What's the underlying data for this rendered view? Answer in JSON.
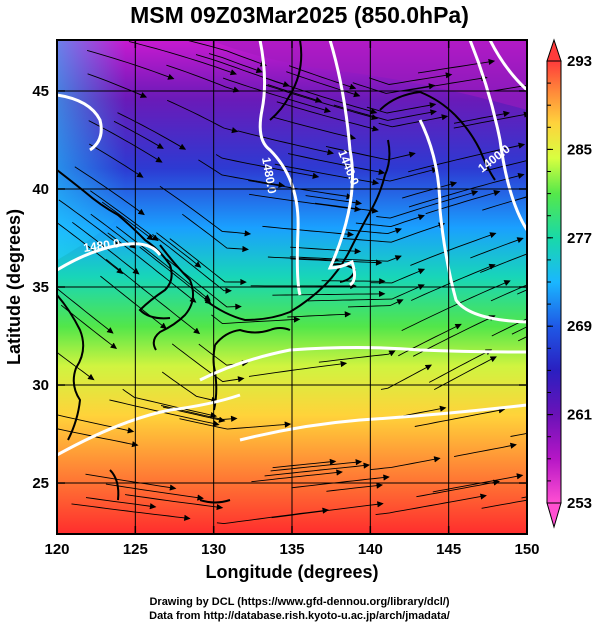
{
  "title": "MSM 09Z03Mar2025 (850.0hPa)",
  "chart_data": {
    "type": "heatmap",
    "title": "MSM 09Z03Mar2025 (850.0hPa)",
    "xlabel": "Longitude (degrees)",
    "ylabel": "Latitude  (degrees)",
    "xlim": [
      120,
      150
    ],
    "ylim": [
      22.4,
      47.6
    ],
    "x_ticks": [
      "120",
      "125",
      "130",
      "135",
      "140",
      "145",
      "150"
    ],
    "y_ticks": [
      "25",
      "30",
      "35",
      "40",
      "45"
    ],
    "grid": true,
    "colorbar": {
      "range": [
        253,
        293
      ],
      "labels": [
        "293",
        "285",
        "277",
        "269",
        "261",
        "253"
      ],
      "colors": [
        "#ff3b3b",
        "#ff8a3a",
        "#ffd23c",
        "#d8ff40",
        "#55e84a",
        "#19d9a8",
        "#1ab7ff",
        "#1f59e6",
        "#2a1fc0",
        "#6a12b8",
        "#b616c6",
        "#ff4fd2"
      ]
    },
    "contour_labels": [
      "1480.0",
      "1440.0",
      "1400.0",
      "1480.0"
    ],
    "overlays": [
      "streamlines",
      "coastlines",
      "height contours (white)"
    ]
  },
  "credits": {
    "line1": "Drawing by DCL (https://www.gfd-dennou.org/library/dcl/)",
    "line2": "Data from http://database.rish.kyoto-u.ac.jp/arch/jmadata/"
  }
}
